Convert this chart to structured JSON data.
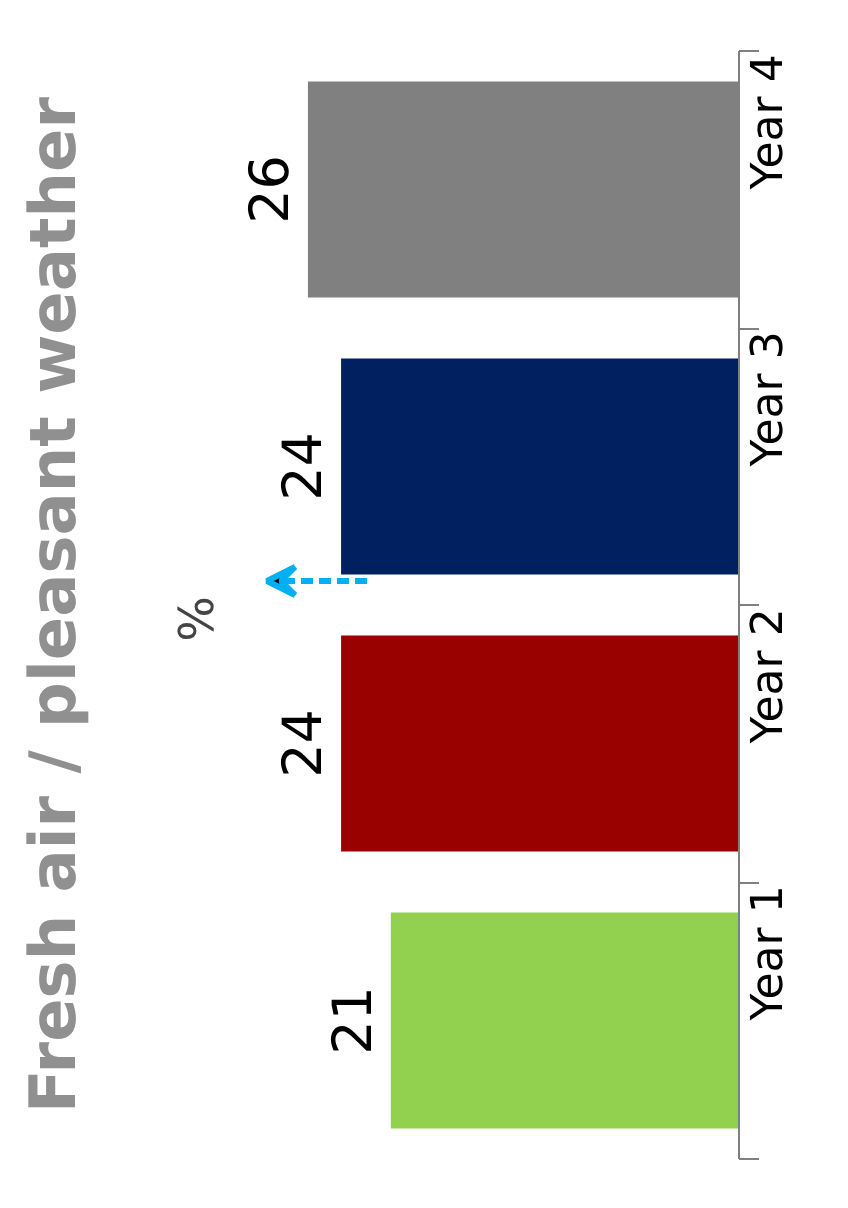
{
  "chart_data": {
    "type": "bar",
    "orientation": "horizontal",
    "title": "Fresh air / pleasant weather",
    "categories": [
      "Year 4",
      "Year 3",
      "Year 2",
      "Year 1"
    ],
    "values": [
      26,
      24,
      24,
      21
    ],
    "colors": [
      "#808080",
      "#002060",
      "#990000",
      "#92d050"
    ],
    "data_labels": true,
    "annotations": [
      "%"
    ],
    "grid": false
  }
}
